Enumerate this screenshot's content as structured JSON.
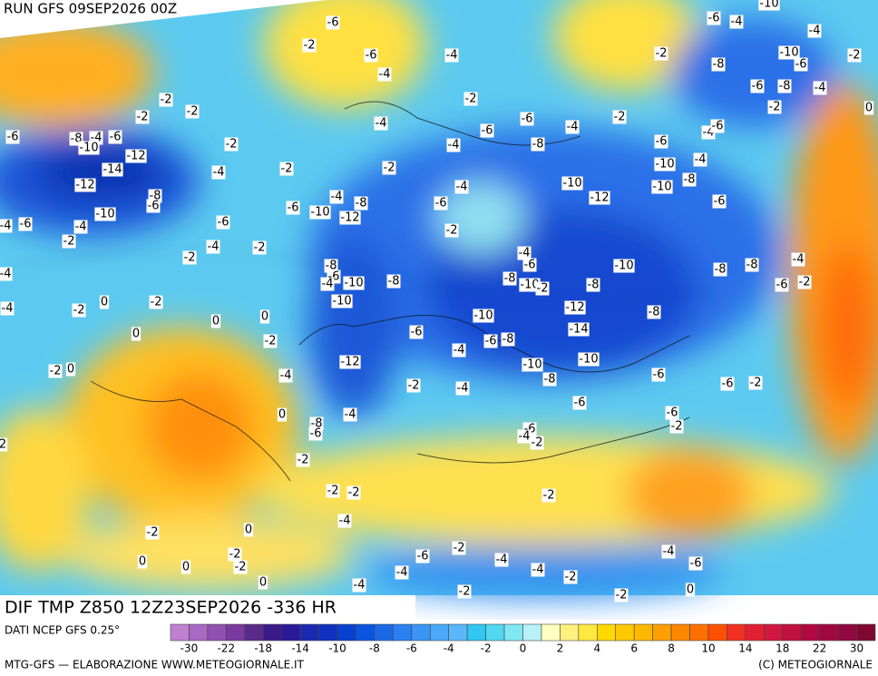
{
  "header": {
    "run": "RUN GFS 09SEP2026 00Z",
    "field": "DIF TMP Z850 12Z23SEP2026 -336 HR"
  },
  "source": "DATI NCEP GFS 0.25°",
  "footer": {
    "left": "MTG-GFS — ELABORAZIONE WWW.METEOGIORNALE.IT",
    "right": "(C) METEOGIORNALE"
  },
  "colorbar": {
    "colors": [
      "#c080d0",
      "#a868c4",
      "#9050b0",
      "#7a3aa0",
      "#5a2a8a",
      "#3a1a8a",
      "#2a1a9a",
      "#1a2ab0",
      "#1030c0",
      "#0840d0",
      "#0a55e0",
      "#1a6ae8",
      "#2a80f0",
      "#3a95f5",
      "#4aa8f8",
      "#5ab8fa",
      "#30c8f0",
      "#50d8f0",
      "#80e8f5",
      "#b8f2f8",
      "#ffffc0",
      "#fff080",
      "#ffe840",
      "#ffd800",
      "#ffc800",
      "#ffb800",
      "#ffa000",
      "#ff8800",
      "#ff7000",
      "#ff5000",
      "#f03020",
      "#e02030",
      "#d01840",
      "#c01040",
      "#b00840",
      "#a00840",
      "#900840",
      "#800830"
    ],
    "ticks": [
      -30,
      -22,
      -18,
      -14,
      -10,
      -8,
      -6,
      -4,
      -2,
      0,
      2,
      4,
      6,
      8,
      10,
      14,
      18,
      22,
      30
    ]
  },
  "contour_labels": [
    -6,
    -2,
    -6,
    -4,
    -4,
    -2,
    -6,
    -4,
    -10,
    -4,
    -2,
    -10,
    -6,
    -8,
    -6,
    -8,
    -4,
    -2,
    0,
    -2,
    -2,
    -2,
    -6,
    -8,
    -4,
    -6,
    -10,
    -12,
    -14,
    -12,
    -2,
    -4,
    -2,
    -4,
    -2,
    -6,
    -4,
    -2,
    -6,
    -4,
    -8,
    -6,
    -4,
    -6,
    -2,
    -4,
    -10,
    -12,
    -10,
    -10,
    -8,
    -4,
    -6,
    -8,
    -6,
    -10,
    -4,
    -2,
    -6,
    -4,
    -6,
    -4,
    -2,
    -2,
    -6,
    -10,
    -12,
    -4,
    -8,
    -6,
    -2,
    -4,
    -6,
    -8,
    -10,
    -2,
    -8,
    -10,
    -8,
    -8,
    -4,
    -6,
    -2,
    -8,
    -6,
    -4,
    -10,
    -8,
    -10,
    -4,
    -4,
    -2,
    0,
    -2,
    0,
    0,
    0,
    -2,
    -6,
    -10,
    -12,
    -8,
    -14,
    -6,
    -8,
    -4,
    -12,
    -10,
    -10,
    -8,
    -6,
    -4,
    -2,
    -4,
    -6,
    -6,
    -2,
    -2,
    0,
    0,
    -8,
    -6,
    -4,
    -6,
    -2,
    -6,
    -2,
    -4,
    2,
    -2,
    -2,
    -2,
    -2,
    -4,
    -2,
    0,
    -2,
    0,
    0,
    -2,
    0,
    -6,
    -2,
    -4,
    -4,
    -4,
    -2,
    -4,
    -6,
    -2,
    -4,
    -2,
    0
  ]
}
